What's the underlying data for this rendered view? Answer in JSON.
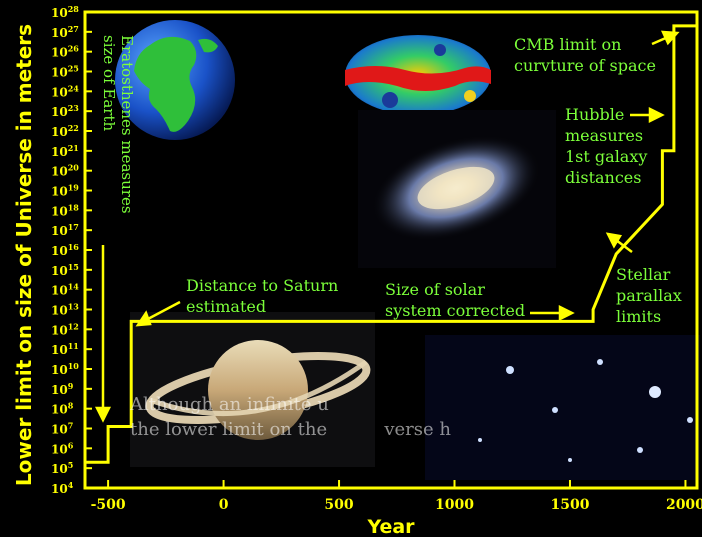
{
  "chart_data": {
    "type": "line",
    "title": "",
    "xlabel": "Year",
    "ylabel": "Lower limit on size of Universe in meters",
    "xlim": [
      -600,
      2050
    ],
    "ylim": [
      4,
      28
    ],
    "y_scale": "log10",
    "x_ticks": [
      -500,
      0,
      500,
      1000,
      1500,
      2000
    ],
    "y_tick_exponents": [
      4,
      5,
      6,
      7,
      8,
      9,
      10,
      11,
      12,
      13,
      14,
      15,
      16,
      17,
      18,
      19,
      20,
      21,
      22,
      23,
      24,
      25,
      26,
      27,
      28
    ],
    "y_tick_base": "10",
    "series": [
      {
        "x": [
          -600,
          -500,
          -500,
          -400,
          -400,
          1600,
          1600,
          1700,
          1900,
          1900,
          1950,
          1950,
          2050
        ],
        "y": [
          5.3,
          5.3,
          7.1,
          7.1,
          12.4,
          12.4,
          13.0,
          15.8,
          18.3,
          21.0,
          21.0,
          27.3,
          27.3
        ]
      }
    ],
    "annotations": [
      {
        "id": "eratosthenes",
        "lines": [
          "Eratosthenes measures",
          "size of Earth"
        ]
      },
      {
        "id": "saturn",
        "lines": [
          "Distance to Saturn",
          "estimated"
        ]
      },
      {
        "id": "solar",
        "lines": [
          "Size of solar",
          "system corrected"
        ]
      },
      {
        "id": "cmb",
        "lines": [
          "CMB limit on",
          "curvture of space"
        ]
      },
      {
        "id": "hubble",
        "lines": [
          "Hubble",
          "measures",
          "1st galaxy",
          "distances"
        ]
      },
      {
        "id": "parallax",
        "lines": [
          "Stellar",
          "parallax",
          "limits"
        ]
      }
    ],
    "grid": false,
    "legend": "none",
    "colors": {
      "background": "#000000",
      "line": "#ffff00",
      "axis": "#ffff00",
      "annotation_text": "#7cff3a",
      "arrow": "#ffff00"
    }
  },
  "caption": {
    "lines": [
      "Although an infinite u",
      "the lower limit on the",
      "verse h"
    ]
  }
}
